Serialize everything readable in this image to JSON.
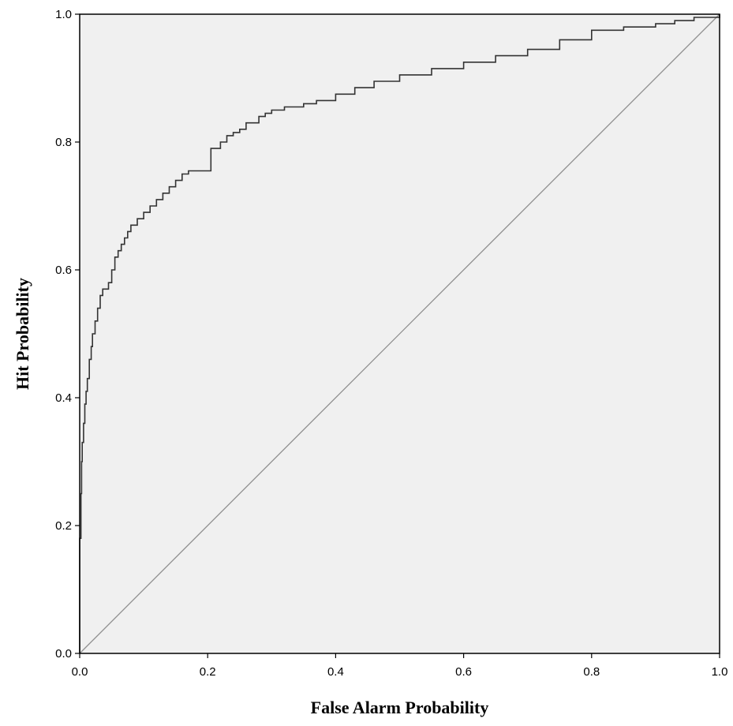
{
  "chart_data": {
    "type": "line",
    "title": "",
    "xlabel": "False Alarm Probability",
    "ylabel": "Hit Probability",
    "xlim": [
      0,
      1
    ],
    "ylim": [
      0,
      1
    ],
    "x_ticks": [
      "0.0",
      "0.2",
      "0.4",
      "0.6",
      "0.8",
      "1.0"
    ],
    "y_ticks": [
      "0.0",
      "0.2",
      "0.4",
      "0.6",
      "0.8",
      "1.0"
    ],
    "grid": false,
    "legend": "none",
    "colors": {
      "plot_background": "#f0f0f0",
      "roc_curve": "#333333",
      "reference_line": "#909090",
      "axis": "#000000"
    },
    "series": [
      {
        "step": true,
        "x": [
          0.0,
          0.0,
          0.002,
          0.003,
          0.004,
          0.006,
          0.008,
          0.01,
          0.012,
          0.015,
          0.018,
          0.02,
          0.024,
          0.028,
          0.032,
          0.036,
          0.04,
          0.045,
          0.05,
          0.055,
          0.06,
          0.065,
          0.07,
          0.075,
          0.08,
          0.09,
          0.1,
          0.11,
          0.12,
          0.13,
          0.14,
          0.15,
          0.16,
          0.17,
          0.18,
          0.2,
          0.205,
          0.22,
          0.23,
          0.24,
          0.25,
          0.26,
          0.28,
          0.29,
          0.3,
          0.32,
          0.35,
          0.37,
          0.4,
          0.43,
          0.46,
          0.5,
          0.55,
          0.6,
          0.65,
          0.7,
          0.75,
          0.8,
          0.85,
          0.9,
          0.93,
          0.96,
          1.0
        ],
        "y": [
          0.0,
          0.18,
          0.25,
          0.3,
          0.33,
          0.36,
          0.39,
          0.41,
          0.43,
          0.46,
          0.48,
          0.5,
          0.52,
          0.54,
          0.56,
          0.57,
          0.57,
          0.58,
          0.6,
          0.62,
          0.63,
          0.64,
          0.65,
          0.66,
          0.67,
          0.68,
          0.69,
          0.7,
          0.71,
          0.72,
          0.73,
          0.74,
          0.75,
          0.755,
          0.755,
          0.755,
          0.79,
          0.8,
          0.81,
          0.815,
          0.82,
          0.83,
          0.84,
          0.845,
          0.85,
          0.855,
          0.86,
          0.865,
          0.875,
          0.885,
          0.895,
          0.905,
          0.915,
          0.925,
          0.935,
          0.945,
          0.96,
          0.975,
          0.98,
          0.985,
          0.99,
          0.995,
          1.0
        ]
      },
      {
        "x": [
          0,
          1
        ],
        "y": [
          0,
          1
        ]
      }
    ]
  }
}
